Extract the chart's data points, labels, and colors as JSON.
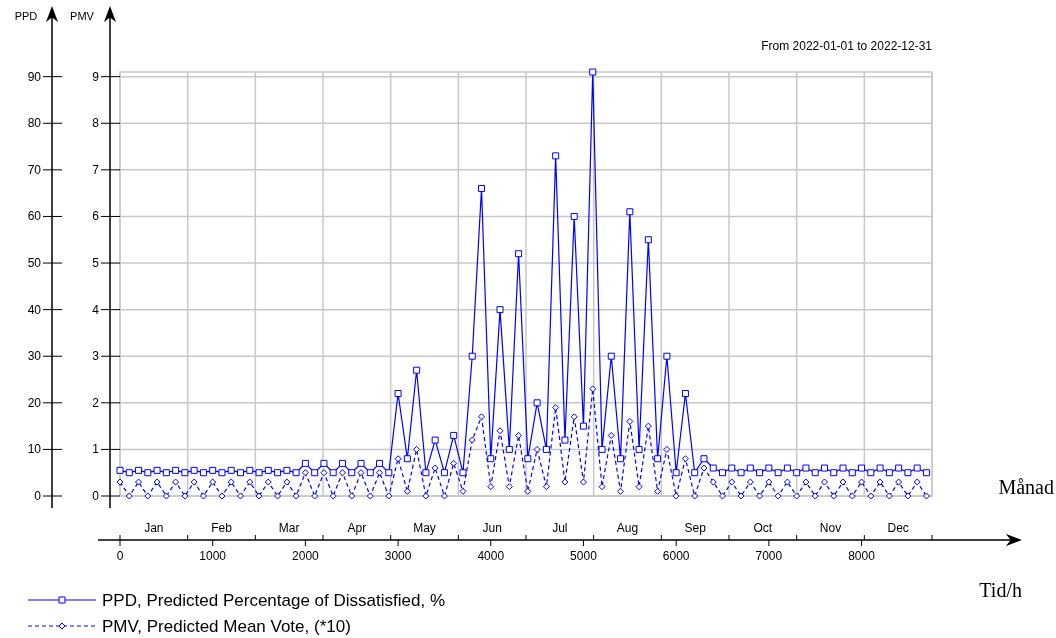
{
  "chart_data": {
    "type": "line",
    "title": "From 2022-01-01 to 2022-12-31",
    "ylabel": "PPD",
    "y2label": "PMV",
    "xlabel": "Tid/h",
    "annotations": [
      "Månad",
      "Jan",
      "Feb",
      "Mar",
      "Apr",
      "May",
      "Jun",
      "Jul",
      "Aug",
      "Sep",
      "Oct",
      "Nov",
      "Dec"
    ],
    "x": [
      0,
      100,
      200,
      300,
      400,
      500,
      600,
      700,
      800,
      900,
      1000,
      1100,
      1200,
      1300,
      1400,
      1500,
      1600,
      1700,
      1800,
      1900,
      2000,
      2100,
      2200,
      2300,
      2400,
      2500,
      2600,
      2700,
      2800,
      2900,
      3000,
      3100,
      3200,
      3300,
      3400,
      3500,
      3600,
      3700,
      3800,
      3900,
      4000,
      4100,
      4200,
      4300,
      4400,
      4500,
      4600,
      4700,
      4800,
      4900,
      5000,
      5100,
      5200,
      5300,
      5400,
      5500,
      5600,
      5700,
      5800,
      5900,
      6000,
      6100,
      6200,
      6300,
      6400,
      6500,
      6600,
      6700,
      6800,
      6900,
      7000,
      7100,
      7200,
      7300,
      7400,
      7500,
      7600,
      7700,
      7800,
      7900,
      8000,
      8100,
      8200,
      8300,
      8400,
      8500,
      8600,
      8700
    ],
    "series": [
      {
        "name": "PPD, Predicted Percentage of Dissatisfied, %",
        "color": "#0000ff",
        "line_style": "solid",
        "marker": "square",
        "values": [
          5.5,
          5,
          5.5,
          5,
          5.5,
          5,
          5.5,
          5,
          5.5,
          5,
          5.5,
          5,
          5.5,
          5,
          5.5,
          5,
          5.5,
          5,
          5.5,
          5,
          7,
          5,
          7,
          5,
          7,
          5,
          7,
          5,
          7,
          5,
          22,
          8,
          27,
          5,
          12,
          5,
          13,
          5,
          30,
          66,
          8,
          40,
          10,
          52,
          8,
          20,
          10,
          73,
          12,
          60,
          15,
          91,
          10,
          30,
          8,
          61,
          10,
          55,
          8,
          30,
          5,
          22,
          5,
          8,
          6,
          5,
          6,
          5,
          6,
          5,
          6,
          5,
          6,
          5,
          6,
          5,
          6,
          5,
          6,
          5,
          6,
          5,
          6,
          5,
          6,
          5,
          6,
          5
        ]
      },
      {
        "name": "PMV, Predicted Mean Vote, (*10)",
        "color": "#0000ff",
        "line_style": "dashed",
        "marker": "diamond",
        "axis": "y2",
        "values": [
          0.3,
          0,
          0.3,
          0,
          0.3,
          0,
          0.3,
          0,
          0.3,
          0,
          0.3,
          0,
          0.3,
          0,
          0.3,
          0,
          0.3,
          0,
          0.3,
          0,
          0.5,
          0,
          0.5,
          0,
          0.5,
          0,
          0.5,
          0,
          0.5,
          0,
          0.8,
          0.1,
          1.0,
          0,
          0.6,
          0,
          0.7,
          0.1,
          1.2,
          1.7,
          0.2,
          1.4,
          0.2,
          1.3,
          0.1,
          1.0,
          0.2,
          1.9,
          0.3,
          1.7,
          0.3,
          2.3,
          0.2,
          1.3,
          0.1,
          1.6,
          0.2,
          1.5,
          0.1,
          1.0,
          0,
          0.8,
          0,
          0.6,
          0.3,
          0,
          0.3,
          0,
          0.3,
          0,
          0.3,
          0,
          0.3,
          0,
          0.3,
          0,
          0.3,
          0,
          0.3,
          0,
          0.3,
          0,
          0.3,
          0,
          0.3,
          0,
          0.3,
          0
        ]
      }
    ],
    "xlim": [
      0,
      8760
    ],
    "xticks": [
      0,
      1000,
      2000,
      3000,
      4000,
      5000,
      6000,
      7000,
      8000
    ],
    "ylim": [
      0,
      91
    ],
    "yticks": [
      0,
      10,
      20,
      30,
      40,
      50,
      60,
      70,
      80,
      90
    ],
    "y2lim": [
      0,
      9.1
    ],
    "y2ticks": [
      0,
      1,
      2,
      3,
      4,
      5,
      6,
      7,
      8,
      9
    ],
    "grid": true,
    "legend": "bottom left"
  }
}
